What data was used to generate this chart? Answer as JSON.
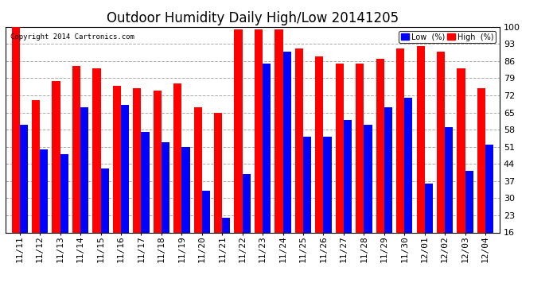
{
  "title": "Outdoor Humidity Daily High/Low 20141205",
  "copyright": "Copyright 2014 Cartronics.com",
  "dates": [
    "11/11",
    "11/12",
    "11/13",
    "11/14",
    "11/15",
    "11/16",
    "11/17",
    "11/18",
    "11/19",
    "11/20",
    "11/21",
    "11/22",
    "11/23",
    "11/24",
    "11/25",
    "11/26",
    "11/27",
    "11/28",
    "11/29",
    "11/30",
    "12/01",
    "12/02",
    "12/03",
    "12/04"
  ],
  "high": [
    100,
    70,
    78,
    84,
    83,
    76,
    75,
    74,
    77,
    67,
    65,
    99,
    99,
    99,
    91,
    88,
    85,
    85,
    87,
    91,
    92,
    90,
    83,
    75
  ],
  "low": [
    60,
    50,
    48,
    67,
    42,
    68,
    57,
    53,
    51,
    33,
    22,
    40,
    85,
    90,
    55,
    55,
    62,
    60,
    67,
    71,
    36,
    59,
    41,
    52
  ],
  "high_color": "#ff0000",
  "low_color": "#0000ff",
  "bg_color": "#ffffff",
  "grid_color": "#aaaaaa",
  "ylim": [
    16,
    100
  ],
  "yticks": [
    16,
    23,
    30,
    37,
    44,
    51,
    58,
    65,
    72,
    79,
    86,
    93,
    100
  ],
  "bar_width": 0.4,
  "title_fontsize": 12,
  "tick_fontsize": 8,
  "legend_low_label": "Low  (%)",
  "legend_high_label": "High  (%)"
}
